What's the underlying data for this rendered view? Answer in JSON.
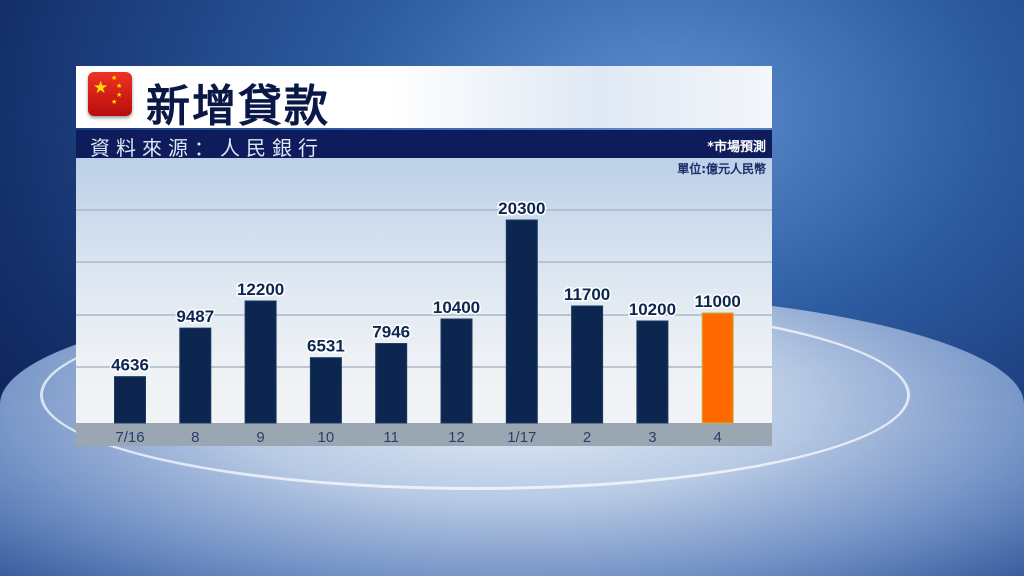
{
  "header": {
    "title": "新增貸款",
    "source": "資料來源：人民銀行",
    "forecast_note": "*市場預測",
    "unit": "單位:億元人民幣"
  },
  "colors": {
    "bar": "#0c2650",
    "forecast_bar": "#ff6a00",
    "title_bar": "#0e1c5c"
  },
  "chart_data": {
    "type": "bar",
    "title": "新增貸款",
    "categories": [
      "7/16",
      "8",
      "9",
      "10",
      "11",
      "12",
      "1/17",
      "2",
      "3",
      "4"
    ],
    "values": [
      4636,
      9487,
      12200,
      6531,
      7946,
      10400,
      20300,
      11700,
      10200,
      11000
    ],
    "forecast_index": [
      9
    ],
    "ylabel": "單位:億元人民幣",
    "ylim": [
      0,
      26500
    ],
    "grid": true
  }
}
